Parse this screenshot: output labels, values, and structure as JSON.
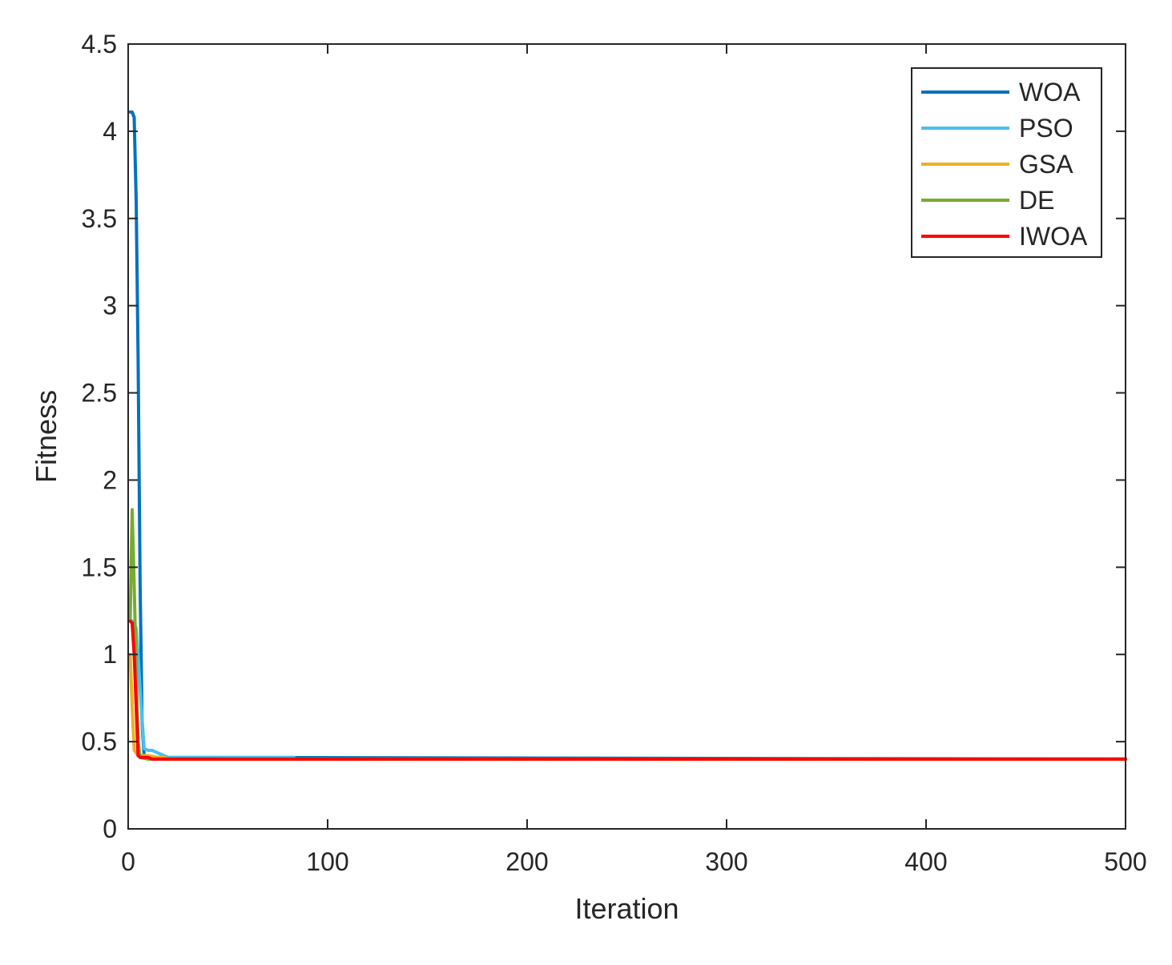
{
  "chart_data": {
    "type": "line",
    "xlabel": "Iteration",
    "ylabel": "Fitness",
    "xlim": [
      0,
      500
    ],
    "ylim": [
      0,
      4.5
    ],
    "xticks": [
      0,
      100,
      200,
      300,
      400,
      500
    ],
    "yticks": [
      0,
      0.5,
      1,
      1.5,
      2,
      2.5,
      3,
      3.5,
      4,
      4.5
    ],
    "xtick_labels": [
      "0",
      "100",
      "200",
      "300",
      "400",
      "500"
    ],
    "ytick_labels": [
      "0",
      "0.5",
      "1",
      "1.5",
      "2",
      "2.5",
      "3",
      "3.5",
      "4",
      "4.5"
    ],
    "grid": false,
    "box": true,
    "legend_position": "top-right",
    "series": [
      {
        "name": "WOA",
        "color": "#0072BD",
        "points": [
          [
            1,
            4.11
          ],
          [
            2,
            4.11
          ],
          [
            3,
            4.08
          ],
          [
            4,
            3.6
          ],
          [
            5,
            2.7
          ],
          [
            6,
            1.4
          ],
          [
            7,
            0.6
          ],
          [
            8,
            0.42
          ],
          [
            10,
            0.41
          ],
          [
            500,
            0.4
          ]
        ]
      },
      {
        "name": "PSO",
        "color": "#4DBEEE",
        "points": [
          [
            1,
            1.2
          ],
          [
            2,
            1.19
          ],
          [
            3,
            1.18
          ],
          [
            4,
            1.15
          ],
          [
            5,
            1.0
          ],
          [
            6,
            0.8
          ],
          [
            8,
            0.46
          ],
          [
            10,
            0.45
          ],
          [
            12,
            0.45
          ],
          [
            14,
            0.44
          ],
          [
            16,
            0.43
          ],
          [
            18,
            0.42
          ],
          [
            20,
            0.41
          ],
          [
            83,
            0.41
          ],
          [
            84,
            0.4
          ],
          [
            500,
            0.4
          ]
        ]
      },
      {
        "name": "GSA",
        "color": "#EDB120",
        "points": [
          [
            1,
            1.0
          ],
          [
            2,
            0.7
          ],
          [
            3,
            0.45
          ],
          [
            5,
            0.42
          ],
          [
            10,
            0.42
          ],
          [
            15,
            0.41
          ],
          [
            18,
            0.41
          ],
          [
            20,
            0.4
          ],
          [
            500,
            0.4
          ]
        ]
      },
      {
        "name": "DE",
        "color": "#77AC30",
        "points": [
          [
            1,
            1.2
          ],
          [
            2,
            1.83
          ],
          [
            3,
            1.4
          ],
          [
            4,
            0.9
          ],
          [
            5,
            0.5
          ],
          [
            6,
            0.41
          ],
          [
            10,
            0.4
          ],
          [
            500,
            0.4
          ]
        ]
      },
      {
        "name": "IWOA",
        "color": "#FF0000",
        "points": [
          [
            1,
            1.19
          ],
          [
            2,
            1.18
          ],
          [
            3,
            1.0
          ],
          [
            4,
            0.7
          ],
          [
            5,
            0.42
          ],
          [
            6,
            0.41
          ],
          [
            8,
            0.41
          ],
          [
            10,
            0.41
          ],
          [
            12,
            0.4
          ],
          [
            500,
            0.4
          ]
        ]
      }
    ]
  }
}
